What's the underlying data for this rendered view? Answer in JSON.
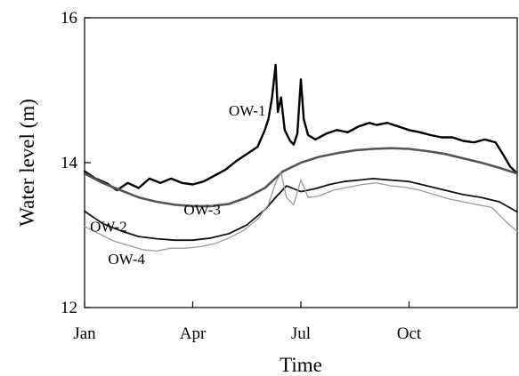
{
  "chart_data": {
    "type": "line",
    "title": "",
    "xlabel": "Time",
    "ylabel": "Water level (m)",
    "xlim": [
      0,
      12
    ],
    "ylim": [
      12,
      16
    ],
    "x_ticks": [
      {
        "value": 0,
        "label": "Jan"
      },
      {
        "value": 3,
        "label": "Apr"
      },
      {
        "value": 6,
        "label": "Jul"
      },
      {
        "value": 9,
        "label": "Oct"
      }
    ],
    "y_ticks": [
      {
        "value": 12,
        "label": "12"
      },
      {
        "value": 14,
        "label": "14"
      },
      {
        "value": 16,
        "label": "16"
      }
    ],
    "grid": false,
    "legend": "none",
    "series": [
      {
        "name": "OW-1",
        "color": "#000000",
        "points": [
          [
            0,
            13.88
          ],
          [
            0.3,
            13.78
          ],
          [
            0.6,
            13.72
          ],
          [
            0.9,
            13.62
          ],
          [
            1.2,
            13.72
          ],
          [
            1.5,
            13.65
          ],
          [
            1.8,
            13.78
          ],
          [
            2.1,
            13.72
          ],
          [
            2.4,
            13.78
          ],
          [
            2.7,
            13.72
          ],
          [
            3.0,
            13.7
          ],
          [
            3.3,
            13.74
          ],
          [
            3.6,
            13.82
          ],
          [
            3.9,
            13.9
          ],
          [
            4.2,
            14.02
          ],
          [
            4.5,
            14.12
          ],
          [
            4.8,
            14.22
          ],
          [
            5.0,
            14.45
          ],
          [
            5.1,
            14.6
          ],
          [
            5.2,
            14.9
          ],
          [
            5.3,
            15.35
          ],
          [
            5.36,
            14.7
          ],
          [
            5.45,
            14.9
          ],
          [
            5.55,
            14.45
          ],
          [
            5.7,
            14.3
          ],
          [
            5.8,
            14.25
          ],
          [
            5.9,
            14.4
          ],
          [
            6.0,
            15.15
          ],
          [
            6.08,
            14.6
          ],
          [
            6.2,
            14.38
          ],
          [
            6.4,
            14.32
          ],
          [
            6.7,
            14.4
          ],
          [
            7.0,
            14.45
          ],
          [
            7.3,
            14.42
          ],
          [
            7.6,
            14.5
          ],
          [
            7.9,
            14.55
          ],
          [
            8.1,
            14.52
          ],
          [
            8.4,
            14.55
          ],
          [
            8.7,
            14.5
          ],
          [
            9.0,
            14.45
          ],
          [
            9.3,
            14.42
          ],
          [
            9.6,
            14.38
          ],
          [
            9.9,
            14.35
          ],
          [
            10.2,
            14.35
          ],
          [
            10.5,
            14.3
          ],
          [
            10.8,
            14.28
          ],
          [
            11.1,
            14.32
          ],
          [
            11.4,
            14.28
          ],
          [
            11.6,
            14.12
          ],
          [
            11.8,
            13.95
          ],
          [
            12.0,
            13.85
          ]
        ]
      },
      {
        "name": "OW-3",
        "color": "#555555",
        "points": [
          [
            0,
            13.85
          ],
          [
            0.5,
            13.72
          ],
          [
            1.0,
            13.62
          ],
          [
            1.5,
            13.52
          ],
          [
            2.0,
            13.46
          ],
          [
            2.5,
            13.42
          ],
          [
            3.0,
            13.4
          ],
          [
            3.5,
            13.4
          ],
          [
            4.0,
            13.43
          ],
          [
            4.5,
            13.52
          ],
          [
            5.0,
            13.65
          ],
          [
            5.5,
            13.88
          ],
          [
            6.0,
            14.0
          ],
          [
            6.5,
            14.08
          ],
          [
            7.0,
            14.13
          ],
          [
            7.5,
            14.17
          ],
          [
            8.0,
            14.19
          ],
          [
            8.5,
            14.2
          ],
          [
            9.0,
            14.19
          ],
          [
            9.5,
            14.16
          ],
          [
            10.0,
            14.12
          ],
          [
            10.5,
            14.06
          ],
          [
            11.0,
            14.0
          ],
          [
            11.5,
            13.93
          ],
          [
            12.0,
            13.85
          ]
        ]
      },
      {
        "name": "OW-2",
        "color": "#111111",
        "points": [
          [
            0,
            13.33
          ],
          [
            0.5,
            13.16
          ],
          [
            1.0,
            13.06
          ],
          [
            1.5,
            12.98
          ],
          [
            2.0,
            12.95
          ],
          [
            2.5,
            12.93
          ],
          [
            3.0,
            12.93
          ],
          [
            3.5,
            12.96
          ],
          [
            4.0,
            13.02
          ],
          [
            4.5,
            13.14
          ],
          [
            5.0,
            13.35
          ],
          [
            5.3,
            13.52
          ],
          [
            5.6,
            13.68
          ],
          [
            6.0,
            13.6
          ],
          [
            6.4,
            13.64
          ],
          [
            6.8,
            13.7
          ],
          [
            7.2,
            13.74
          ],
          [
            7.6,
            13.76
          ],
          [
            8.0,
            13.78
          ],
          [
            8.5,
            13.76
          ],
          [
            9.0,
            13.74
          ],
          [
            9.5,
            13.68
          ],
          [
            10.0,
            13.62
          ],
          [
            10.5,
            13.56
          ],
          [
            11.0,
            13.52
          ],
          [
            11.5,
            13.46
          ],
          [
            12.0,
            13.32
          ]
        ]
      },
      {
        "name": "OW-4",
        "color": "#9a9a9a",
        "points": [
          [
            0,
            13.12
          ],
          [
            0.4,
            13.02
          ],
          [
            0.8,
            12.92
          ],
          [
            1.2,
            12.86
          ],
          [
            1.6,
            12.8
          ],
          [
            2.0,
            12.78
          ],
          [
            2.4,
            12.82
          ],
          [
            2.8,
            12.82
          ],
          [
            3.2,
            12.84
          ],
          [
            3.6,
            12.88
          ],
          [
            4.0,
            12.96
          ],
          [
            4.4,
            13.06
          ],
          [
            4.8,
            13.22
          ],
          [
            5.1,
            13.42
          ],
          [
            5.3,
            13.72
          ],
          [
            5.45,
            13.86
          ],
          [
            5.6,
            13.52
          ],
          [
            5.8,
            13.42
          ],
          [
            6.0,
            13.76
          ],
          [
            6.2,
            13.52
          ],
          [
            6.5,
            13.54
          ],
          [
            6.9,
            13.62
          ],
          [
            7.3,
            13.66
          ],
          [
            7.7,
            13.7
          ],
          [
            8.1,
            13.72
          ],
          [
            8.5,
            13.68
          ],
          [
            8.9,
            13.66
          ],
          [
            9.3,
            13.62
          ],
          [
            9.7,
            13.56
          ],
          [
            10.1,
            13.5
          ],
          [
            10.5,
            13.46
          ],
          [
            10.9,
            13.42
          ],
          [
            11.3,
            13.38
          ],
          [
            11.7,
            13.18
          ],
          [
            12.0,
            13.05
          ]
        ]
      }
    ],
    "annotations": [
      {
        "text": "OW-1",
        "series": "OW-1"
      },
      {
        "text": "OW-3",
        "series": "OW-3"
      },
      {
        "text": "OW-2",
        "series": "OW-2"
      },
      {
        "text": "OW-4",
        "series": "OW-4"
      }
    ]
  }
}
